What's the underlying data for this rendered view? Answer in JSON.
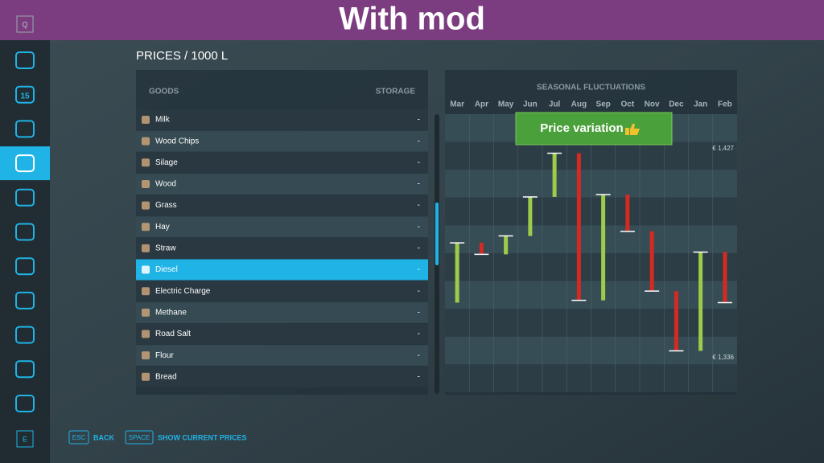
{
  "banner": "With mod",
  "sidebar": {
    "calendar_day": "15",
    "top_key": "Q",
    "bottom_key": "E",
    "selected_index": 3
  },
  "header": {
    "title": "PRICES / 1000 L"
  },
  "goods_table": {
    "columns": [
      "GOODS",
      "STORAGE"
    ],
    "selected_index": 7,
    "rows": [
      [
        "Milk",
        "-"
      ],
      [
        "Wood Chips",
        "-"
      ],
      [
        "Silage",
        "-"
      ],
      [
        "Wood",
        "-"
      ],
      [
        "Grass",
        "-"
      ],
      [
        "Hay",
        "-"
      ],
      [
        "Straw",
        "-"
      ],
      [
        "Diesel",
        "-"
      ],
      [
        "Electric Charge",
        "-"
      ],
      [
        "Methane",
        "-"
      ],
      [
        "Road Salt",
        "-"
      ],
      [
        "Flour",
        "-"
      ],
      [
        "Bread",
        "-"
      ]
    ]
  },
  "chart_data": {
    "type": "candlestick",
    "title": "SEASONAL FLUCTUATIONS",
    "badge": "Price variation",
    "categories": [
      "Mar",
      "Apr",
      "May",
      "Jun",
      "Jul",
      "Aug",
      "Sep",
      "Oct",
      "Nov",
      "Dec",
      "Jan",
      "Feb"
    ],
    "open": [
      1360,
      1386,
      1381,
      1389,
      1406,
      1425,
      1361,
      1407,
      1391,
      1365,
      1339,
      1382
    ],
    "close": [
      1386,
      1381,
      1389,
      1406,
      1425,
      1361,
      1407,
      1391,
      1365,
      1339,
      1382,
      1360
    ],
    "up_color": "#9ccc4a",
    "down_color": "#d42a22",
    "ylim": [
      1321,
      1442
    ],
    "yticks": [
      {
        "value": 1427,
        "label": "€ 1,427"
      },
      {
        "value": 1336,
        "label": "€ 1,336"
      }
    ]
  },
  "footer": [
    {
      "key": "ESC",
      "label": "BACK"
    },
    {
      "key": "SPACE",
      "label": "SHOW CURRENT PRICES"
    }
  ]
}
